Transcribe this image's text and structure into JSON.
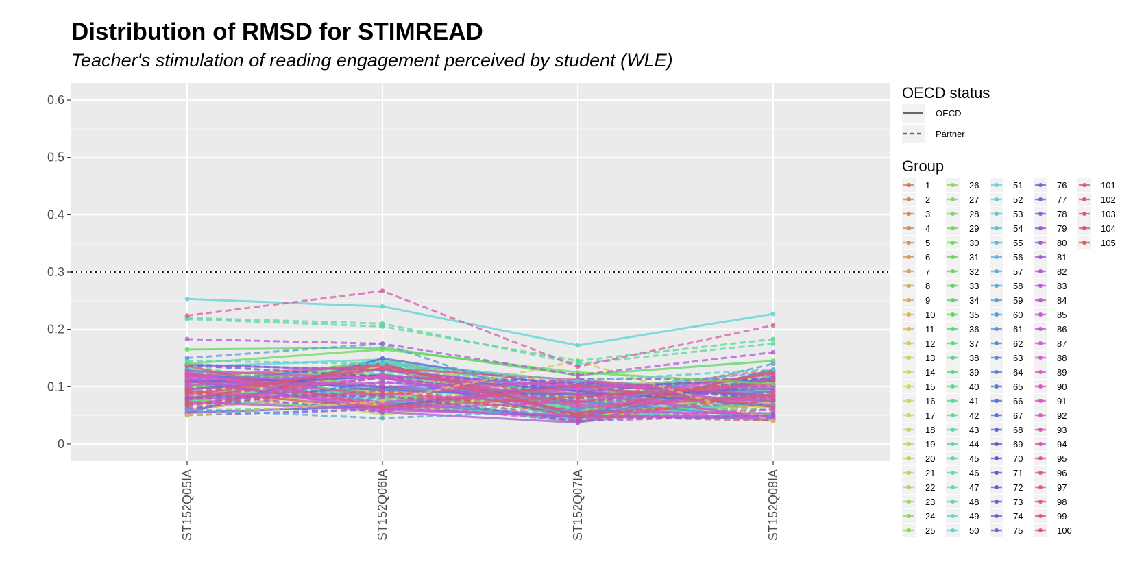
{
  "chart_data": {
    "type": "line",
    "title": "Distribution of RMSD for STIMREAD",
    "subtitle": "Teacher's stimulation of reading engagement perceived by student (WLE)",
    "xlabel": "",
    "ylabel": "",
    "categories": [
      "ST152Q05IA",
      "ST152Q06IA",
      "ST152Q07IA",
      "ST152Q08IA"
    ],
    "ylim": [
      -0.03,
      0.63
    ],
    "yticks": [
      "0",
      "0.1",
      "0.2",
      "0.3",
      "0.4",
      "0.5",
      "0.6"
    ],
    "reference_line": {
      "y": 0.3,
      "style": "dotted"
    },
    "grid": true,
    "legend_placement": "right",
    "legend_linetype": {
      "title": "OECD status",
      "entries": [
        {
          "label": "OECD",
          "style": "solid"
        },
        {
          "label": "Partner",
          "style": "dashed"
        }
      ]
    },
    "legend_group": {
      "title": "Group",
      "labels": [
        "1",
        "2",
        "3",
        "4",
        "5",
        "6",
        "7",
        "8",
        "9",
        "10",
        "11",
        "12",
        "13",
        "14",
        "15",
        "16",
        "17",
        "18",
        "19",
        "20",
        "21",
        "22",
        "23",
        "24",
        "25",
        "26",
        "27",
        "28",
        "29",
        "30",
        "31",
        "32",
        "33",
        "34",
        "35",
        "36",
        "37",
        "38",
        "39",
        "40",
        "41",
        "42",
        "43",
        "44",
        "45",
        "46",
        "47",
        "48",
        "49",
        "50",
        "51",
        "52",
        "53",
        "54",
        "55",
        "56",
        "57",
        "58",
        "59",
        "60",
        "61",
        "62",
        "63",
        "64",
        "65",
        "66",
        "67",
        "68",
        "69",
        "70",
        "71",
        "72",
        "73",
        "74",
        "75",
        "76",
        "77",
        "78",
        "79",
        "80",
        "81",
        "82",
        "83",
        "84",
        "85",
        "86",
        "87",
        "88",
        "89",
        "90",
        "91",
        "92",
        "93",
        "94",
        "95",
        "96",
        "97",
        "98",
        "99",
        "100",
        "101",
        "102",
        "103",
        "104",
        "105"
      ]
    },
    "highlighted_series": [
      {
        "name": "52",
        "status": "OECD",
        "values": [
          0.253,
          0.24,
          0.172,
          0.227
        ]
      },
      {
        "name": "94",
        "status": "Partner",
        "values": [
          0.224,
          0.267,
          0.135,
          0.207
        ]
      },
      {
        "name": "44",
        "status": "Partner",
        "values": [
          0.22,
          0.21,
          0.14,
          0.175
        ]
      },
      {
        "name": "41",
        "status": "Partner",
        "values": [
          0.218,
          0.205,
          0.145,
          0.183
        ]
      },
      {
        "name": "82",
        "status": "Partner",
        "values": [
          0.183,
          0.175,
          0.12,
          0.16
        ]
      },
      {
        "name": "34",
        "status": "OECD",
        "values": [
          0.165,
          0.168,
          0.12,
          0.145
        ]
      },
      {
        "name": "60",
        "status": "Partner",
        "values": [
          0.15,
          0.175,
          0.06,
          0.14
        ]
      },
      {
        "name": "30",
        "status": "OECD",
        "values": [
          0.14,
          0.165,
          0.125,
          0.105
        ]
      },
      {
        "name": "53",
        "status": "Partner",
        "values": [
          0.145,
          0.14,
          0.11,
          0.13
        ]
      },
      {
        "name": "12",
        "status": "Partner",
        "values": [
          0.05,
          0.075,
          0.145,
          0.04
        ]
      },
      {
        "name": "58",
        "status": "Partner",
        "values": [
          0.06,
          0.045,
          0.06,
          0.07
        ]
      },
      {
        "name": "79",
        "status": "Partner",
        "values": [
          0.08,
          0.085,
          0.04,
          0.05
        ]
      }
    ],
    "series_value_range": [
      0.035,
      0.267
    ]
  }
}
